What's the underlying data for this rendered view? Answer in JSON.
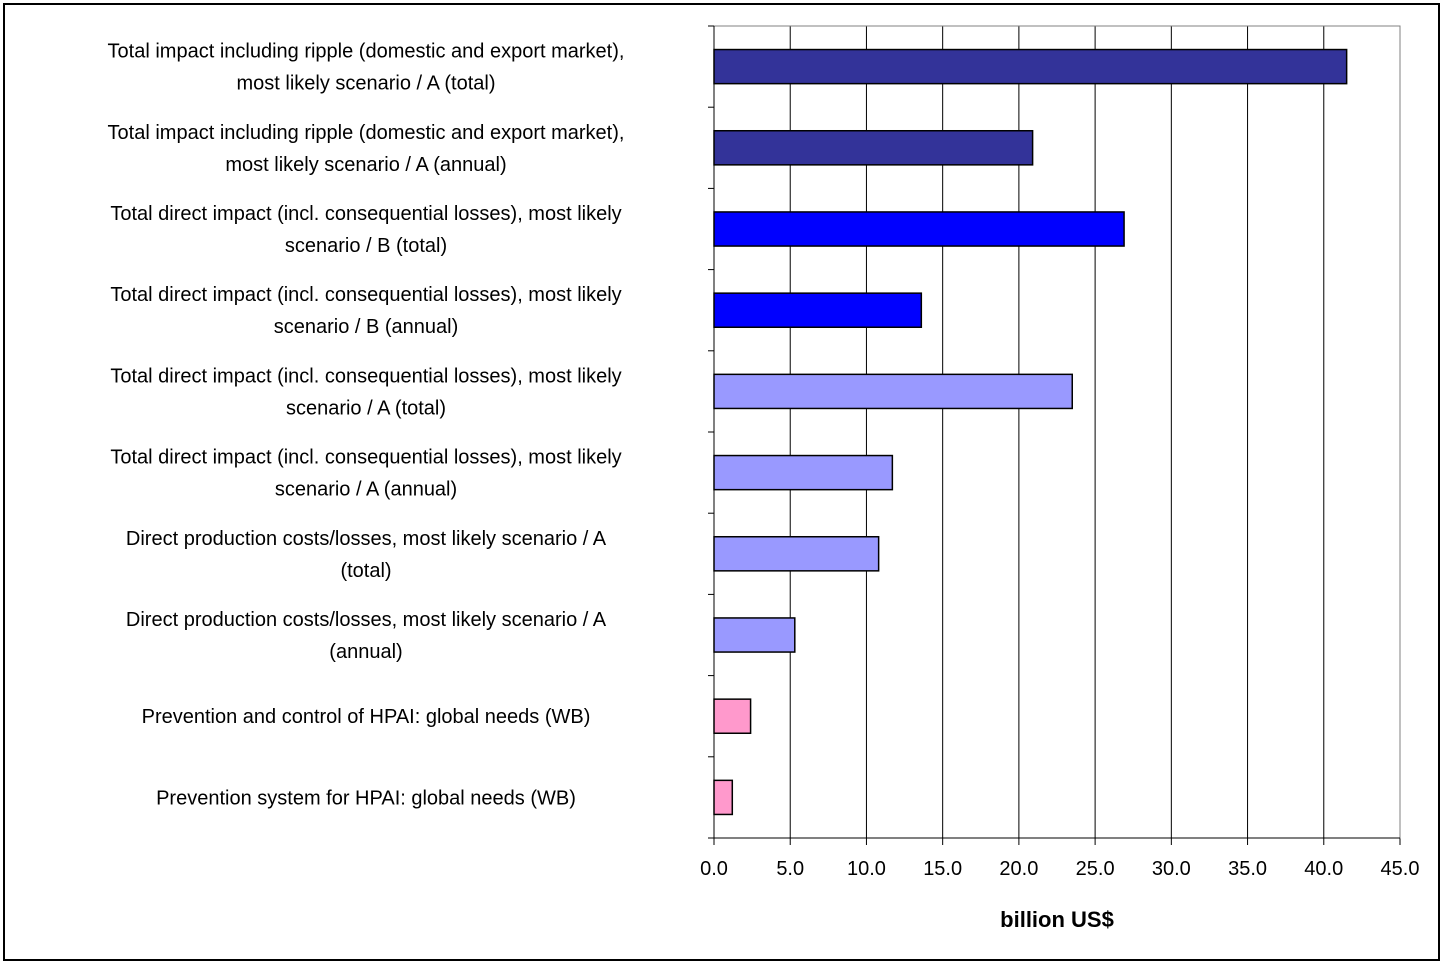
{
  "chart_data": {
    "type": "bar",
    "orientation": "horizontal",
    "categories": [
      [
        "Total impact including ripple (domestic and export market),",
        "most likely scenario / A (total)"
      ],
      [
        "Total impact including ripple (domestic and export market),",
        "most likely scenario / A (annual)"
      ],
      [
        "Total direct impact (incl. consequential losses), most likely",
        "scenario / B (total)"
      ],
      [
        "Total direct impact (incl. consequential losses), most likely",
        "scenario / B (annual)"
      ],
      [
        "Total direct impact (incl. consequential losses), most likely",
        "scenario / A (total)"
      ],
      [
        "Total direct impact (incl. consequential losses), most likely",
        "scenario / A (annual)"
      ],
      [
        "Direct production costs/losses, most likely scenario / A",
        "(total)"
      ],
      [
        "Direct production costs/losses, most likely scenario / A",
        "(annual)"
      ],
      [
        "Prevention and control of HPAI: global needs (WB)"
      ],
      [
        "Prevention system for HPAI: global needs (WB)"
      ]
    ],
    "values": [
      41.5,
      20.9,
      26.9,
      13.6,
      23.5,
      11.7,
      10.8,
      5.3,
      2.4,
      1.2
    ],
    "bar_colors": [
      "#333399",
      "#333399",
      "#0000FF",
      "#0000FF",
      "#9999FF",
      "#9999FF",
      "#9999FF",
      "#9999FF",
      "#FF99CC",
      "#FF99CC"
    ],
    "xlabel": "billion US$",
    "xlim": [
      0,
      45
    ],
    "xticks": [
      0,
      5,
      10,
      15,
      20,
      25,
      30,
      35,
      40,
      45
    ],
    "tick_format_decimals": 1,
    "grid": "vertical"
  }
}
